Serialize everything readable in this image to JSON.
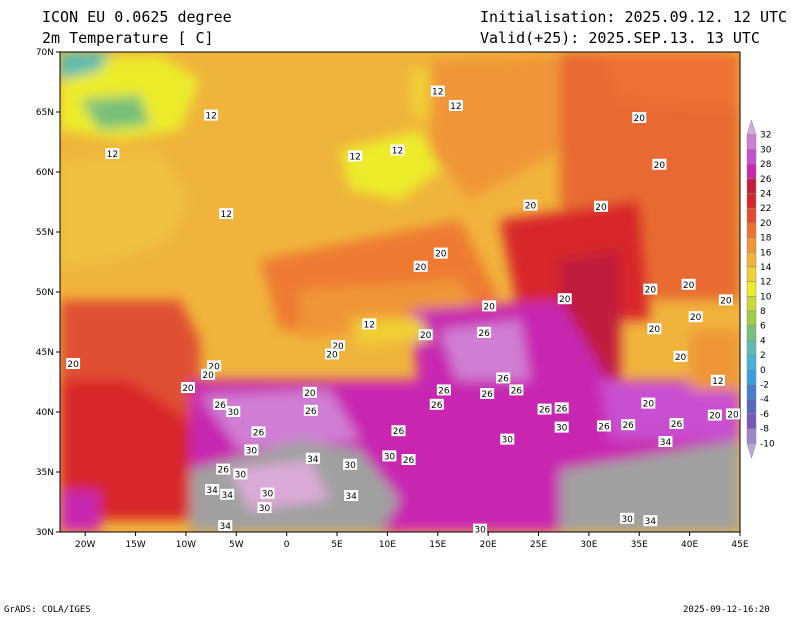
{
  "header": {
    "model": "ICON EU 0.0625 degree",
    "variable": "2m Temperature [ C]",
    "init": "Initialisation: 2025.09.12. 12 UTC",
    "valid": "Valid(+25): 2025.SEP.13. 13 UTC"
  },
  "map": {
    "lat_range": [
      30,
      70
    ],
    "lon_range": [
      -22.5,
      45
    ],
    "lat_ticks": [
      "70N",
      "65N",
      "60N",
      "55N",
      "50N",
      "45N",
      "40N",
      "35N",
      "30N"
    ],
    "lon_ticks": [
      "20W",
      "15W",
      "10W",
      "5W",
      "0",
      "5E",
      "10E",
      "15E",
      "20E",
      "25E",
      "30E",
      "35E",
      "40E",
      "45E"
    ],
    "contour_labels": [
      {
        "text": "12",
        "lon": -7.5,
        "lat": 64.7
      },
      {
        "text": "12",
        "lon": -17.3,
        "lat": 61.5
      },
      {
        "text": "12",
        "lon": -6,
        "lat": 56.5
      },
      {
        "text": "12",
        "lon": 15,
        "lat": 66.7
      },
      {
        "text": "12",
        "lon": 16.8,
        "lat": 65.5
      },
      {
        "text": "12",
        "lon": 6.8,
        "lat": 61.3
      },
      {
        "text": "12",
        "lon": 11,
        "lat": 61.8
      },
      {
        "text": "12",
        "lon": 8.2,
        "lat": 47.3
      },
      {
        "text": "12",
        "lon": 42.8,
        "lat": 42.6
      },
      {
        "text": "20",
        "lon": 35,
        "lat": 64.5
      },
      {
        "text": "20",
        "lon": 37,
        "lat": 60.6
      },
      {
        "text": "20",
        "lon": 24.2,
        "lat": 57.2
      },
      {
        "text": "20",
        "lon": 31.2,
        "lat": 57.1
      },
      {
        "text": "20",
        "lon": 15.3,
        "lat": 53.2
      },
      {
        "text": "20",
        "lon": 13.3,
        "lat": 52.1
      },
      {
        "text": "20",
        "lon": 20.1,
        "lat": 48.8
      },
      {
        "text": "20",
        "lon": 27.6,
        "lat": 49.4
      },
      {
        "text": "20",
        "lon": 36.1,
        "lat": 50.2
      },
      {
        "text": "20",
        "lon": 39.9,
        "lat": 50.6
      },
      {
        "text": "20",
        "lon": 43.6,
        "lat": 49.3
      },
      {
        "text": "20",
        "lon": 40.6,
        "lat": 47.9
      },
      {
        "text": "20",
        "lon": 36.5,
        "lat": 46.9
      },
      {
        "text": "20",
        "lon": 13.8,
        "lat": 46.4
      },
      {
        "text": "20",
        "lon": 5.1,
        "lat": 45.5
      },
      {
        "text": "20",
        "lon": 4.5,
        "lat": 44.8
      },
      {
        "text": "20",
        "lon": -21.2,
        "lat": 44.0
      },
      {
        "text": "20",
        "lon": -7.2,
        "lat": 43.8
      },
      {
        "text": "20",
        "lon": -7.8,
        "lat": 43.1
      },
      {
        "text": "20",
        "lon": -9.8,
        "lat": 42.0
      },
      {
        "text": "20",
        "lon": 2.3,
        "lat": 41.6
      },
      {
        "text": "20",
        "lon": 39.1,
        "lat": 44.6
      },
      {
        "text": "20",
        "lon": 35.9,
        "lat": 40.7
      },
      {
        "text": "20",
        "lon": 42.5,
        "lat": 39.7
      },
      {
        "text": "20",
        "lon": 44.3,
        "lat": 39.8
      },
      {
        "text": "26",
        "lon": 19.6,
        "lat": 46.6
      },
      {
        "text": "26",
        "lon": 21.5,
        "lat": 42.8
      },
      {
        "text": "26",
        "lon": 22.8,
        "lat": 41.8
      },
      {
        "text": "26",
        "lon": 15.6,
        "lat": 41.8
      },
      {
        "text": "26",
        "lon": 19.9,
        "lat": 41.5
      },
      {
        "text": "26",
        "lon": 14.9,
        "lat": 40.6
      },
      {
        "text": "26",
        "lon": -6.6,
        "lat": 40.6
      },
      {
        "text": "26",
        "lon": 2.4,
        "lat": 40.1
      },
      {
        "text": "26",
        "lon": -2.8,
        "lat": 38.3
      },
      {
        "text": "26",
        "lon": 11.1,
        "lat": 38.4
      },
      {
        "text": "26",
        "lon": 25.6,
        "lat": 40.2
      },
      {
        "text": "26",
        "lon": 27.3,
        "lat": 40.3
      },
      {
        "text": "26",
        "lon": 31.5,
        "lat": 38.8
      },
      {
        "text": "26",
        "lon": 33.9,
        "lat": 38.9
      },
      {
        "text": "26",
        "lon": 38.7,
        "lat": 39.0
      },
      {
        "text": "26",
        "lon": 12.1,
        "lat": 36.0
      },
      {
        "text": "26",
        "lon": -6.3,
        "lat": 35.2
      },
      {
        "text": "30",
        "lon": -5.3,
        "lat": 40.0
      },
      {
        "text": "30",
        "lon": -3.5,
        "lat": 36.8
      },
      {
        "text": "30",
        "lon": -4.6,
        "lat": 34.8
      },
      {
        "text": "30",
        "lon": 6.3,
        "lat": 35.6
      },
      {
        "text": "30",
        "lon": 10.2,
        "lat": 36.3
      },
      {
        "text": "30",
        "lon": 21.9,
        "lat": 37.7
      },
      {
        "text": "30",
        "lon": 27.3,
        "lat": 38.7
      },
      {
        "text": "30",
        "lon": -1.9,
        "lat": 33.2
      },
      {
        "text": "30",
        "lon": -2.2,
        "lat": 32.0
      },
      {
        "text": "30",
        "lon": 19.2,
        "lat": 30.2
      },
      {
        "text": "30",
        "lon": 33.8,
        "lat": 31.1
      },
      {
        "text": "34",
        "lon": 2.6,
        "lat": 36.1
      },
      {
        "text": "34",
        "lon": -7.4,
        "lat": 33.5
      },
      {
        "text": "34",
        "lon": -5.9,
        "lat": 33.1
      },
      {
        "text": "34",
        "lon": 6.4,
        "lat": 33.0
      },
      {
        "text": "34",
        "lon": -6.1,
        "lat": 30.5
      },
      {
        "text": "34",
        "lon": 36.1,
        "lat": 30.9
      },
      {
        "text": "34",
        "lon": 37.6,
        "lat": 37.5
      }
    ]
  },
  "colorbar": {
    "levels": [
      "32",
      "30",
      "28",
      "26",
      "24",
      "22",
      "20",
      "18",
      "16",
      "14",
      "12",
      "10",
      "8",
      "6",
      "4",
      "2",
      "0",
      "-2",
      "-4",
      "-6",
      "-8",
      "-10"
    ],
    "colors": [
      "#dcaad8",
      "#d07ed4",
      "#c850d0",
      "#c828b0",
      "#c01e3c",
      "#d8282c",
      "#e64a2c",
      "#ee7030",
      "#f09638",
      "#f0b43c",
      "#f0d036",
      "#ecec2c",
      "#c8d838",
      "#a0cc48",
      "#78c07a",
      "#5cbcb0",
      "#48b4d8",
      "#38a0dc",
      "#4080cc",
      "#5866c0",
      "#7a58b8",
      "#9c88c8",
      "#b8a8d4"
    ]
  },
  "footer": {
    "left": "GrADS: COLA/IGES",
    "right": "2025-09-12-16:20"
  }
}
